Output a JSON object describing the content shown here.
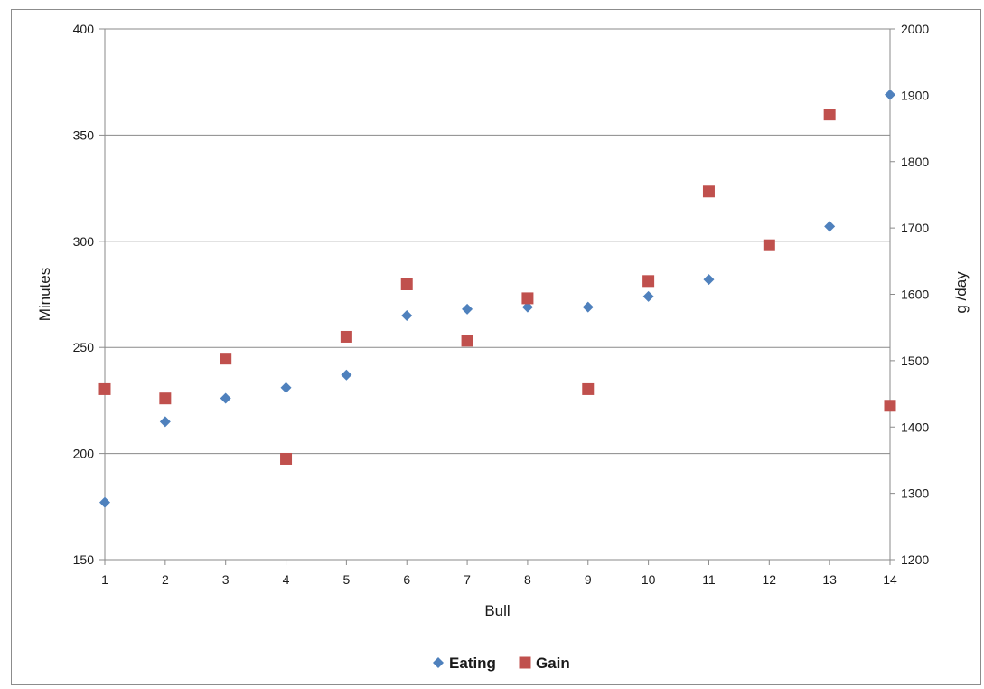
{
  "chart_data": {
    "type": "scatter",
    "x": [
      1,
      2,
      3,
      4,
      5,
      6,
      7,
      8,
      9,
      10,
      11,
      12,
      13,
      14
    ],
    "xlabel": "Bull",
    "ylabel": "Minutes",
    "y2label": "g /day",
    "xlim": [
      1,
      14
    ],
    "ylim": [
      150,
      400
    ],
    "y2lim": [
      1200,
      2000
    ],
    "yticks": [
      150,
      200,
      250,
      300,
      350,
      400
    ],
    "y2ticks": [
      1200,
      1300,
      1400,
      1500,
      1600,
      1700,
      1800,
      1900,
      2000
    ],
    "grid": "horizontal",
    "legend": "bottom",
    "series": [
      {
        "name": "Eating",
        "axis": "left",
        "marker": "diamond",
        "color": "#4f81bd",
        "values": [
          177,
          215,
          226,
          231,
          237,
          265,
          268,
          269,
          269,
          274,
          282,
          298,
          307,
          369
        ]
      },
      {
        "name": "Gain",
        "axis": "right",
        "marker": "square",
        "color": "#c0504d",
        "values": [
          1457,
          1443,
          1503,
          1352,
          1536,
          1615,
          1530,
          1594,
          1457,
          1620,
          1755,
          1674,
          1871,
          1432
        ]
      }
    ]
  }
}
